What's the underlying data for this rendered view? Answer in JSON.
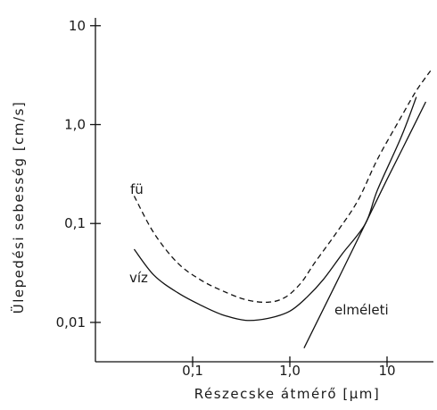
{
  "chart_data": {
    "type": "line",
    "xscale": "log",
    "yscale": "log",
    "xlabel": "Részecske átmérő [μm]",
    "ylabel": "Ülepedési sebesség [cm/s]",
    "xlim": [
      0.01,
      30
    ],
    "ylim": [
      0.004,
      12
    ],
    "grid": false,
    "x_ticks": [
      {
        "value": 0.1,
        "label": "0,1"
      },
      {
        "value": 1.0,
        "label": "1,0"
      },
      {
        "value": 10,
        "label": "10"
      }
    ],
    "y_ticks": [
      {
        "value": 0.01,
        "label": "0,01"
      },
      {
        "value": 0.1,
        "label": "0,1"
      },
      {
        "value": 1.0,
        "label": "1,0"
      },
      {
        "value": 10,
        "label": "10"
      }
    ],
    "series": [
      {
        "name": "fü",
        "style": "dashed",
        "points": [
          [
            0.025,
            0.19
          ],
          [
            0.04,
            0.08
          ],
          [
            0.07,
            0.04
          ],
          [
            0.12,
            0.027
          ],
          [
            0.2,
            0.021
          ],
          [
            0.35,
            0.017
          ],
          [
            0.6,
            0.016
          ],
          [
            0.9,
            0.018
          ],
          [
            1.3,
            0.025
          ],
          [
            1.8,
            0.04
          ],
          [
            3,
            0.08
          ],
          [
            5,
            0.17
          ],
          [
            8,
            0.45
          ],
          [
            14,
            1.2
          ],
          [
            20,
            2.2
          ],
          [
            28,
            3.5
          ]
        ]
      },
      {
        "name": "víz",
        "style": "solid",
        "points": [
          [
            0.025,
            0.055
          ],
          [
            0.04,
            0.03
          ],
          [
            0.07,
            0.02
          ],
          [
            0.12,
            0.015
          ],
          [
            0.2,
            0.012
          ],
          [
            0.35,
            0.0105
          ],
          [
            0.6,
            0.011
          ],
          [
            1.0,
            0.013
          ],
          [
            1.5,
            0.018
          ],
          [
            2.2,
            0.027
          ],
          [
            3.5,
            0.05
          ],
          [
            6,
            0.1
          ],
          [
            8,
            0.22
          ],
          [
            14,
            0.75
          ],
          [
            20,
            1.9
          ]
        ]
      },
      {
        "name": "elméleti",
        "style": "solid",
        "points": [
          [
            1.4,
            0.0055
          ],
          [
            3,
            0.025
          ],
          [
            6,
            0.1
          ],
          [
            10,
            0.28
          ],
          [
            16,
            0.7
          ],
          [
            25,
            1.7
          ]
        ]
      }
    ]
  }
}
